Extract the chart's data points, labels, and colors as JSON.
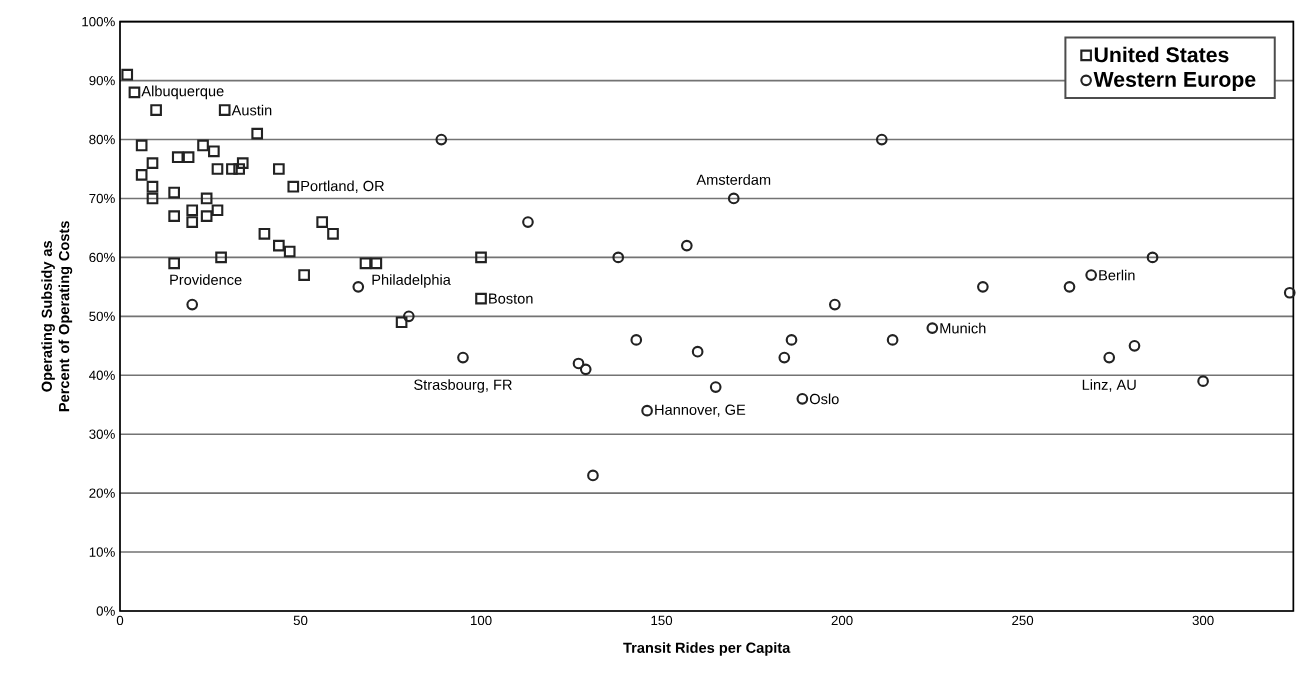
{
  "chart_data": {
    "type": "scatter",
    "xlabel": "Transit Rides per Capita",
    "ylabel": "Operating Subsidy as Percent of Operating Costs",
    "xlim": [
      0,
      325
    ],
    "ylim": [
      0,
      100
    ],
    "xticks": [
      0,
      50,
      100,
      150,
      200,
      250,
      300
    ],
    "yticks": [
      {
        "value": 0,
        "label": "0%"
      },
      {
        "value": 10,
        "label": "10%"
      },
      {
        "value": 20,
        "label": "20%"
      },
      {
        "value": 30,
        "label": "30%"
      },
      {
        "value": 40,
        "label": "40%"
      },
      {
        "value": 50,
        "label": "50%"
      },
      {
        "value": 60,
        "label": "60%"
      },
      {
        "value": 70,
        "label": "70%"
      },
      {
        "value": 80,
        "label": "80%"
      },
      {
        "value": 90,
        "label": "90%"
      },
      {
        "value": 100,
        "label": "100%"
      }
    ],
    "grid": "y",
    "legend": "top right",
    "series": [
      {
        "name": "United States",
        "color": "#222222",
        "marker": "square",
        "x": [
          2,
          4,
          10,
          29,
          38,
          6,
          23,
          26,
          16,
          19,
          9,
          34,
          27,
          31,
          33,
          44,
          6,
          9,
          9,
          48,
          15,
          24,
          15,
          20,
          20,
          24,
          27,
          40,
          44,
          47,
          56,
          59,
          15,
          28,
          51,
          68,
          71,
          100,
          100,
          78
        ],
        "values": [
          91,
          88,
          85,
          85,
          81,
          79,
          79,
          78,
          77,
          77,
          76,
          76,
          75,
          75,
          75,
          75,
          74,
          72,
          70,
          72,
          71,
          70,
          67,
          68,
          66,
          67,
          68,
          64,
          62,
          61,
          66,
          64,
          59,
          60,
          57,
          59,
          59,
          60,
          53,
          49
        ]
      },
      {
        "name": "Western Europe",
        "color": "#222222",
        "marker": "circle",
        "x": [
          20,
          66,
          89,
          113,
          80,
          95,
          127,
          129,
          211,
          170,
          157,
          138,
          198,
          225,
          143,
          186,
          214,
          160,
          184,
          165,
          189,
          146,
          131,
          286,
          269,
          239,
          263,
          324,
          281,
          274,
          300
        ],
        "values": [
          52,
          55,
          80,
          66,
          50,
          43,
          42,
          41,
          80,
          70,
          62,
          60,
          52,
          48,
          46,
          46,
          46,
          44,
          43,
          38,
          36,
          34,
          23,
          60,
          57,
          55,
          55,
          54,
          45,
          43,
          39
        ]
      }
    ],
    "annotations": [
      {
        "text": "Albuquerque",
        "x": 4,
        "y": 88
      },
      {
        "text": "Austin",
        "x": 29,
        "y": 85
      },
      {
        "text": "Portland, OR",
        "x": 48,
        "y": 72
      },
      {
        "text": "Providence",
        "x": 15,
        "y": 59
      },
      {
        "text": "Philadelphia",
        "x": 71,
        "y": 59
      },
      {
        "text": "Boston",
        "x": 100,
        "y": 53
      },
      {
        "text": "Strasbourg, FR",
        "x": 95,
        "y": 43
      },
      {
        "text": "Amsterdam",
        "x": 170,
        "y": 70
      },
      {
        "text": "Hannover, GE",
        "x": 146,
        "y": 34
      },
      {
        "text": "Oslo",
        "x": 189,
        "y": 36
      },
      {
        "text": "Munich",
        "x": 225,
        "y": 48
      },
      {
        "text": "Berlin",
        "x": 269,
        "y": 57
      },
      {
        "text": "Linz, AU",
        "x": 274,
        "y": 43
      }
    ]
  }
}
